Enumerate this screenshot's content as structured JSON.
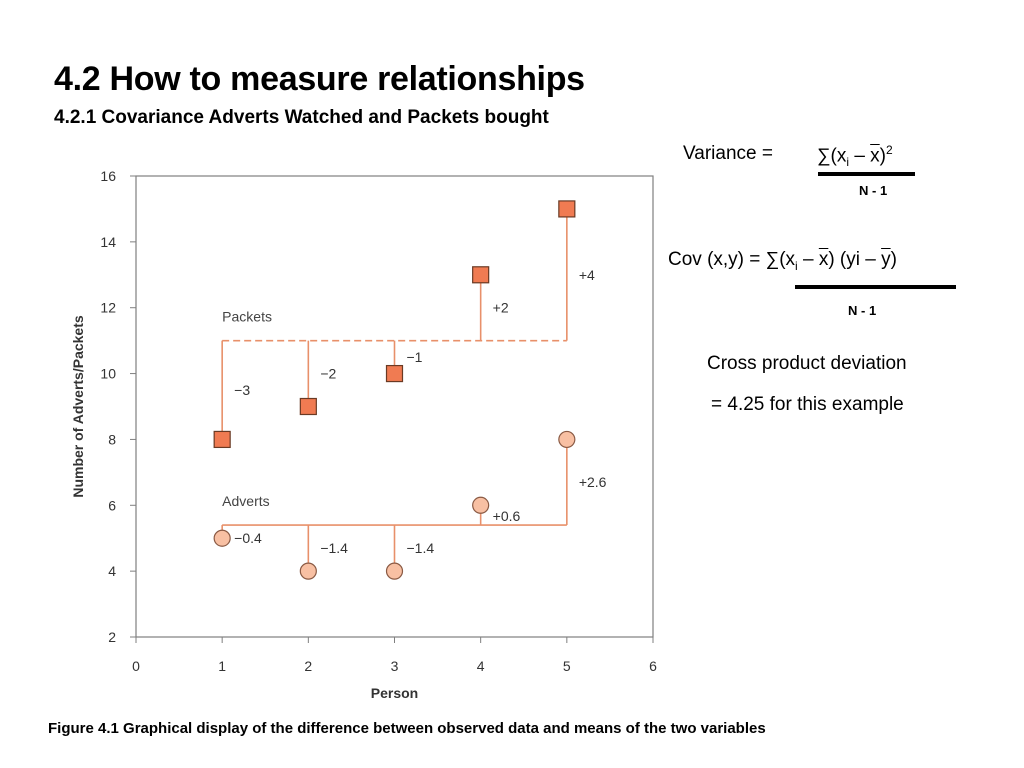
{
  "heading": {
    "title": "4.2 How to measure relationships",
    "subtitle": "4.2.1 Covariance Adverts Watched and Packets bought"
  },
  "variance": {
    "label": "Variance =",
    "sum": "∑(x",
    "sub": "i",
    "dash": " – ",
    "mean": "x",
    "close": ")",
    "sup": "2",
    "denominator": "N - 1"
  },
  "covariance": {
    "label": "Cov (x,y) = ",
    "sum": "∑(x",
    "sub": "i",
    "dash": " – ",
    "mean_x": "x",
    "mid": ") (yi – ",
    "mean_y": "y",
    "close": ")",
    "denominator": "N - 1"
  },
  "note": {
    "line1": "Cross product deviation",
    "line2": "= 4.25 for this example"
  },
  "caption": "Figure 4.1 Graphical display of the difference between observed data and means  of the two variables",
  "chart_data": {
    "type": "scatter",
    "xlabel": "Person",
    "ylabel": "Number of Adverts/Packets",
    "xlim": [
      0,
      6
    ],
    "ylim": [
      2,
      16
    ],
    "xticks": [
      0,
      1,
      2,
      3,
      4,
      5,
      6
    ],
    "yticks": [
      2,
      4,
      6,
      8,
      10,
      12,
      14,
      16
    ],
    "grid": false,
    "series": [
      {
        "name": "Packets",
        "marker": "square",
        "color": "#f07b52",
        "mean": 11,
        "mean_line": "dashed",
        "x": [
          1,
          2,
          3,
          4,
          5
        ],
        "y": [
          8,
          9,
          10,
          13,
          15
        ],
        "deviation_labels": [
          "−3",
          "−2",
          "−1",
          "+2",
          "+4"
        ]
      },
      {
        "name": "Adverts",
        "marker": "circle",
        "color": "#f8c0a3",
        "mean": 5.4,
        "mean_line": "solid",
        "x": [
          1,
          2,
          3,
          4,
          5
        ],
        "y": [
          5,
          4,
          4,
          6,
          8
        ],
        "deviation_labels": [
          "−0.4",
          "−1.4",
          "−1.4",
          "+0.6",
          "+2.6"
        ]
      }
    ],
    "line_color": "#e8906a"
  }
}
